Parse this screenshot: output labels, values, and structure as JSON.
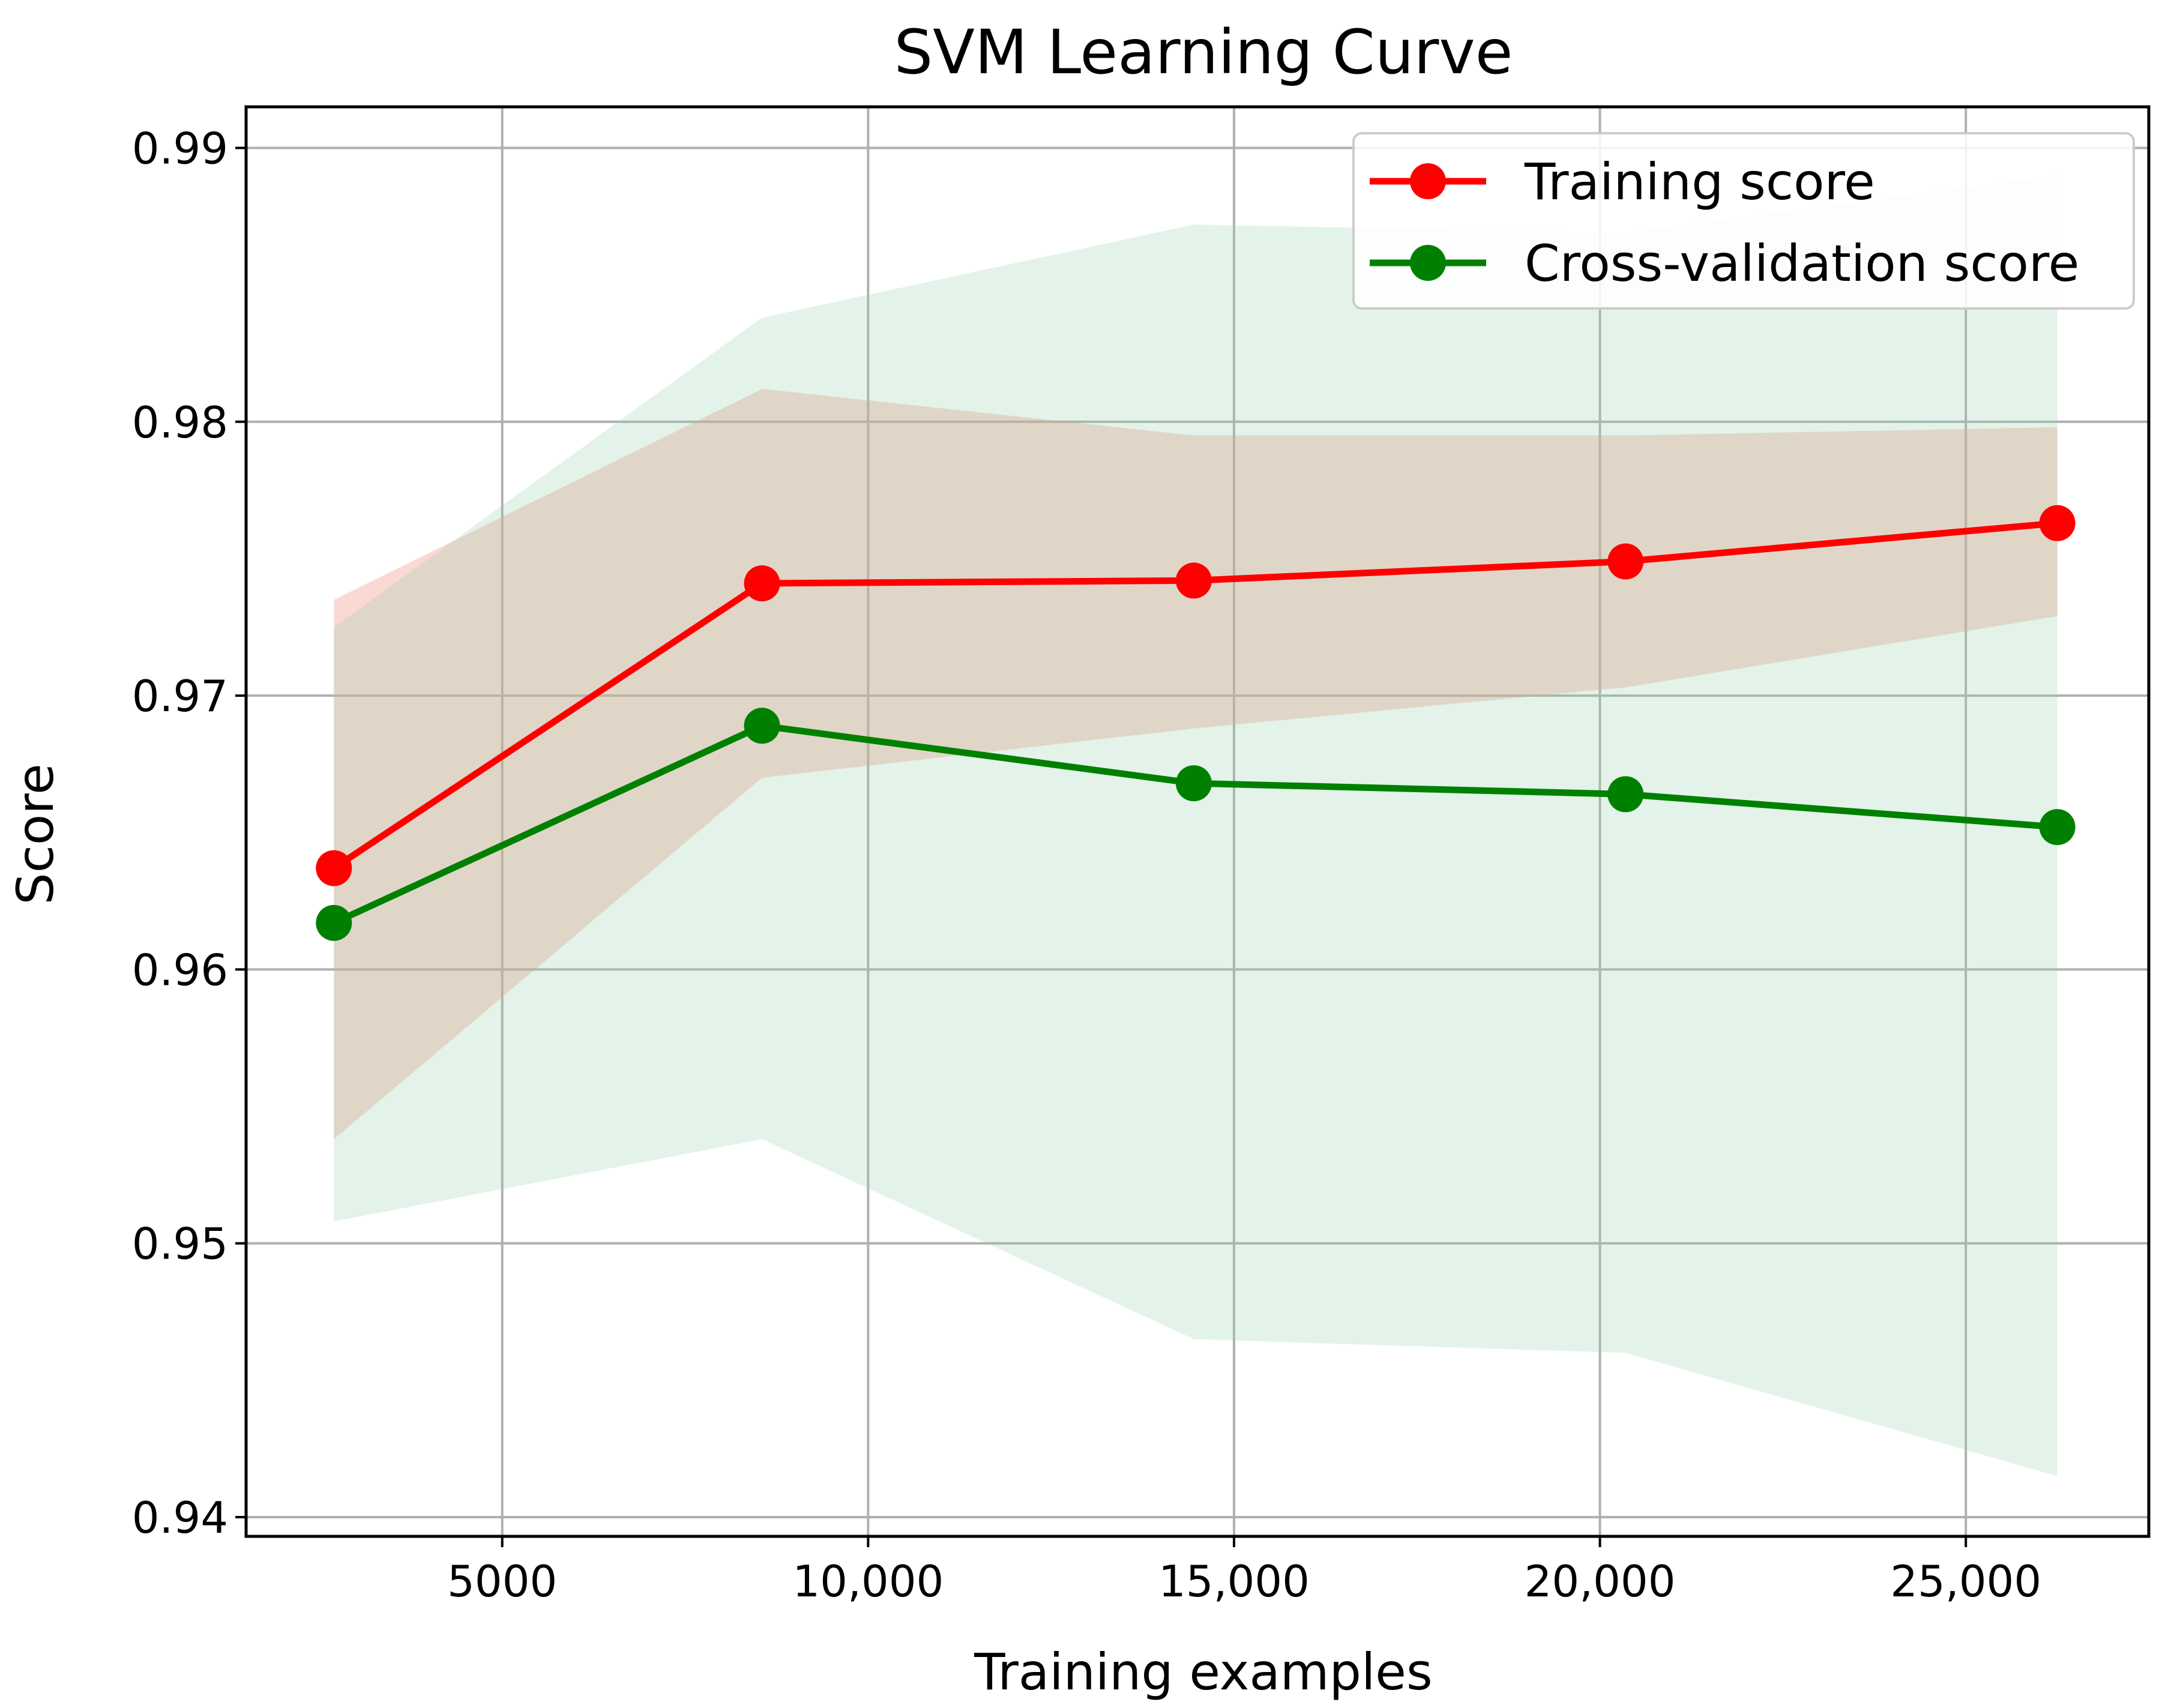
{
  "chart_data": {
    "type": "line",
    "title": "SVM Learning Curve",
    "xlabel": "Training examples",
    "ylabel": "Score",
    "xlim": [
      1500,
      27500
    ],
    "ylim": [
      0.9393,
      0.9915
    ],
    "grid": true,
    "legend_position": "top-right",
    "x_ticks": [
      {
        "value": 5000,
        "label": "5000"
      },
      {
        "value": 10000,
        "label": "10,000"
      },
      {
        "value": 15000,
        "label": "15,000"
      },
      {
        "value": 20000,
        "label": "20,000"
      },
      {
        "value": 25000,
        "label": "25,000"
      }
    ],
    "y_ticks": [
      {
        "value": 0.94,
        "label": "0.94"
      },
      {
        "value": 0.95,
        "label": "0.95"
      },
      {
        "value": 0.96,
        "label": "0.96"
      },
      {
        "value": 0.97,
        "label": "0.97"
      },
      {
        "value": 0.98,
        "label": "0.98"
      },
      {
        "value": 0.99,
        "label": "0.99"
      }
    ],
    "x": [
      2700,
      8550,
      14450,
      20350,
      26250
    ],
    "series": [
      {
        "name": "Training score",
        "color": "#ff0000",
        "band_color": "#f4a090",
        "values": [
          0.9637,
          0.9741,
          0.9742,
          0.9749,
          0.9763
        ],
        "lower": [
          0.9538,
          0.967,
          0.9688,
          0.9703,
          0.9729
        ],
        "upper": [
          0.9735,
          0.9812,
          0.9795,
          0.9795,
          0.9798
        ]
      },
      {
        "name": "Cross-validation score",
        "color": "#008000",
        "band_color": "#90d0a8",
        "values": [
          0.9617,
          0.9689,
          0.9668,
          0.9664,
          0.9652
        ],
        "lower": [
          0.9508,
          0.9538,
          0.9465,
          0.946,
          0.9415
        ],
        "upper": [
          0.9725,
          0.9838,
          0.9872,
          0.9869,
          0.989
        ]
      }
    ]
  }
}
